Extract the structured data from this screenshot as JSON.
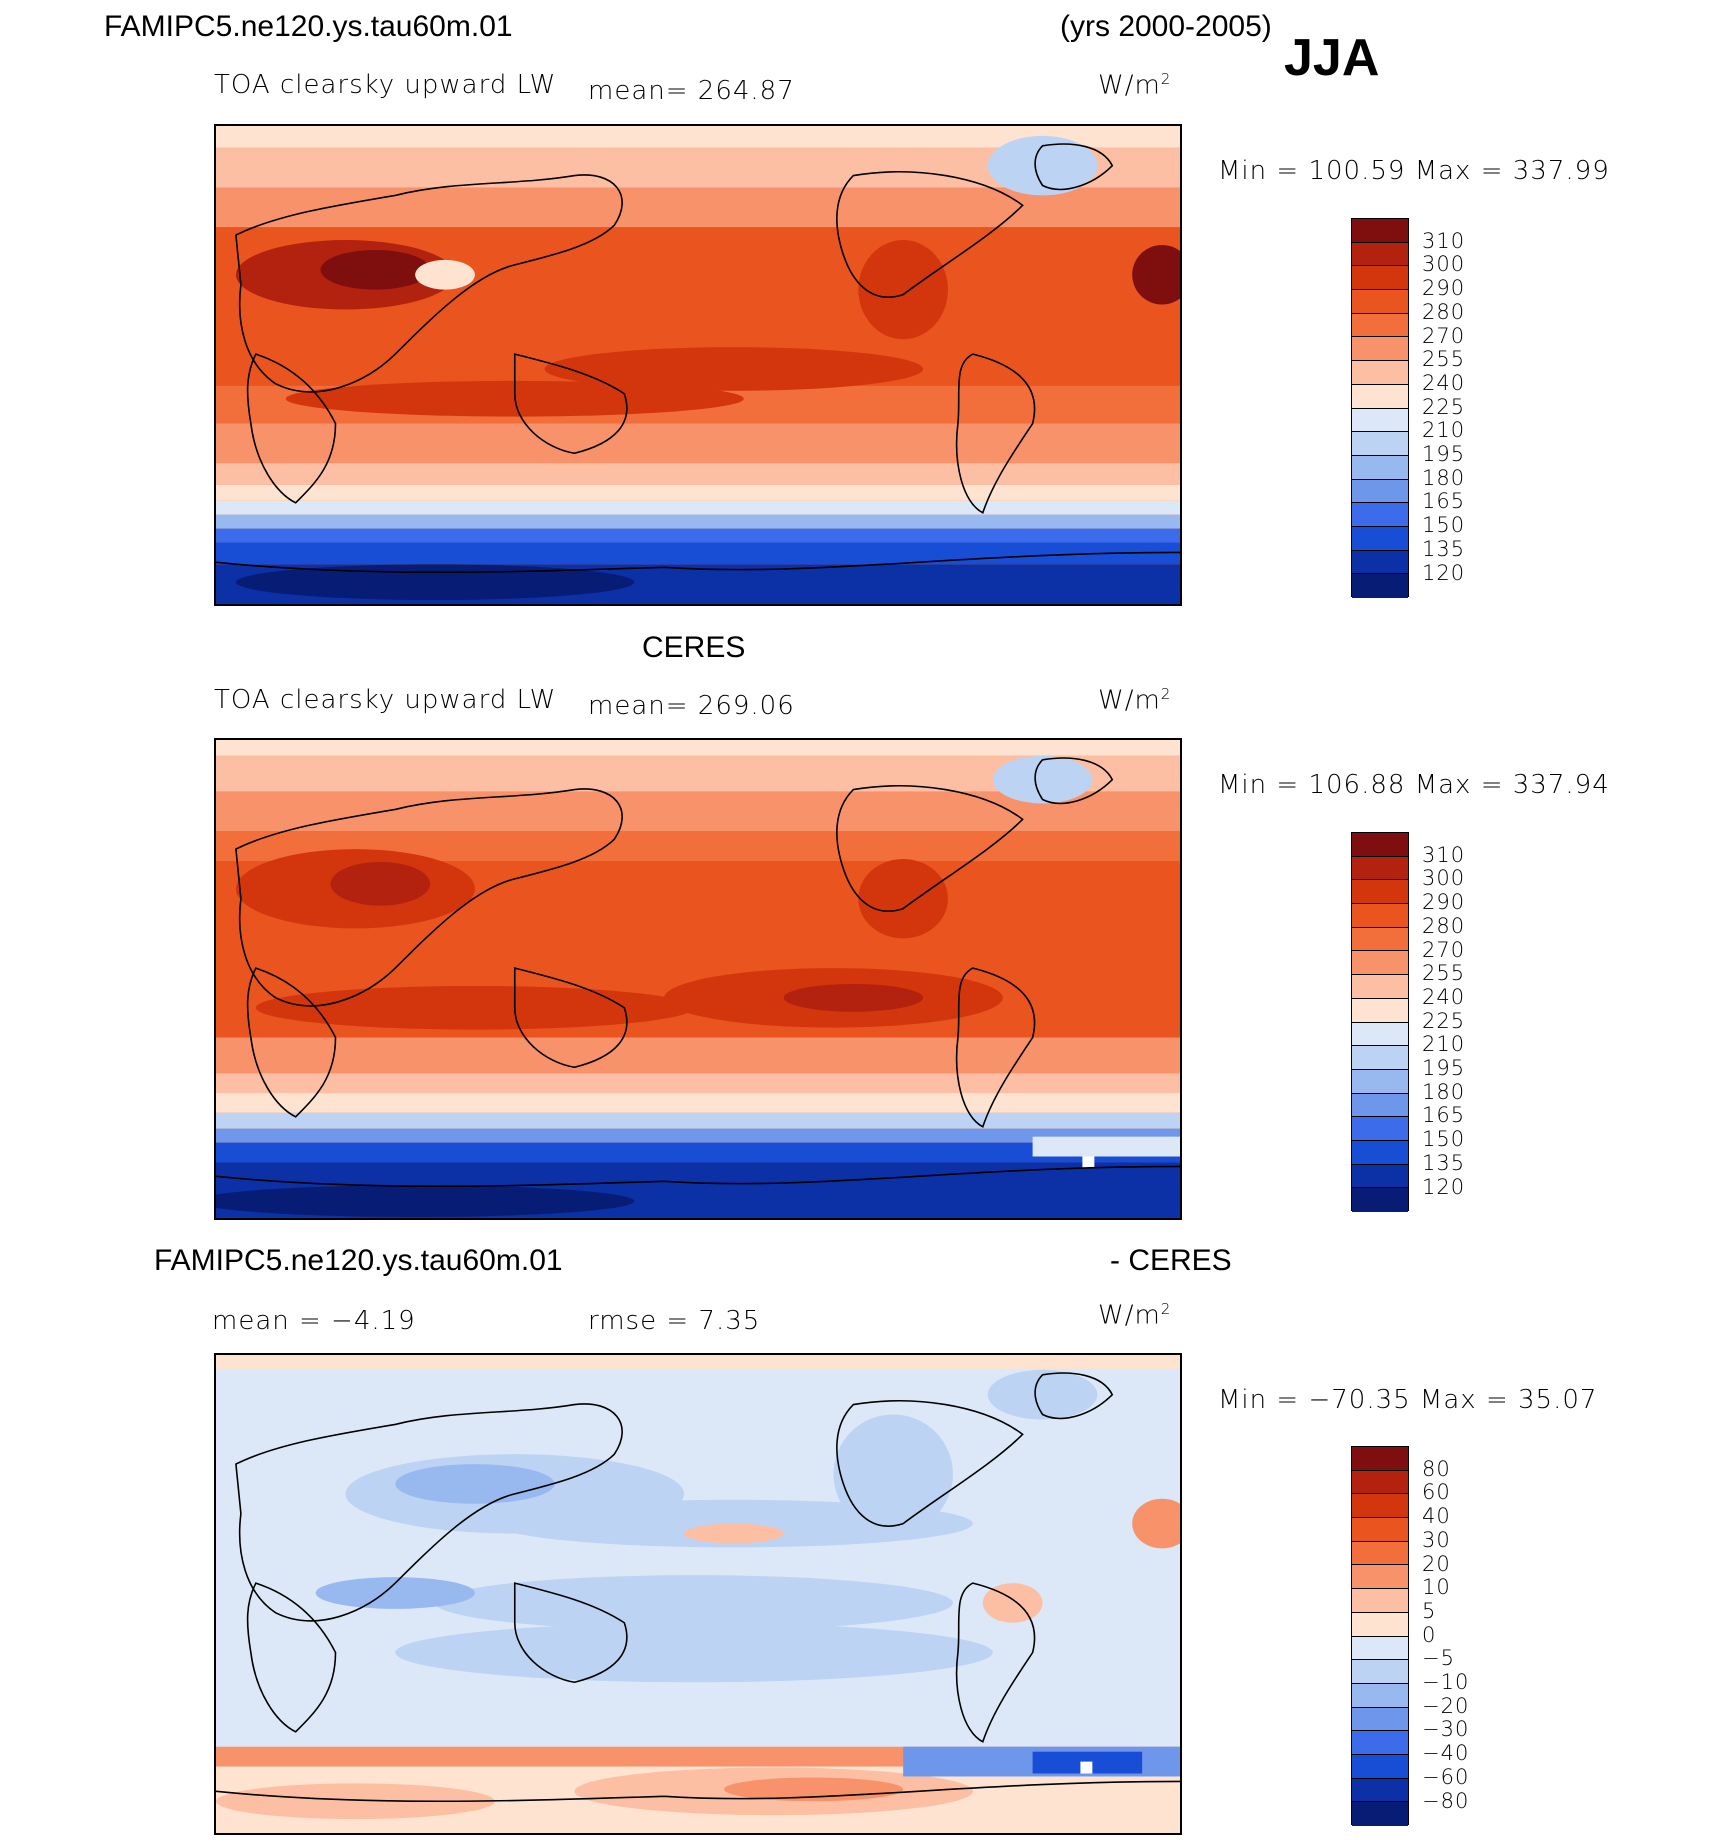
{
  "season": "JJA",
  "top_header": {
    "case": "FAMIPC5.ne120.ys.tau60m.01",
    "years": "(yrs 2000-2005)"
  },
  "panels": [
    {
      "heading": "",
      "var_label": "TOA clearsky upward LW",
      "mean_label": "mean=  264.87",
      "extra_label": "",
      "units": "W/m",
      "units_sup": "2",
      "minmax": "Min  =  100.59  Max  =  337.99"
    },
    {
      "heading": "CERES",
      "var_label": "TOA clearsky upward LW",
      "mean_label": "mean=  269.06",
      "extra_label": "",
      "units": "W/m",
      "units_sup": "2",
      "minmax": "Min  =  106.88  Max  =  337.94"
    },
    {
      "heading": "FAMIPC5.ne120.ys.tau60m.01",
      "heading_right": "- CERES",
      "var_label": "",
      "mean_label": "mean  =    −4.19",
      "extra_label": "rmse  =     7.35",
      "units": "W/m",
      "units_sup": "2",
      "minmax": "Min  =  −70.35  Max  =    35.07"
    }
  ],
  "colorbars": {
    "field": {
      "labels": [
        "310",
        "300",
        "290",
        "280",
        "270",
        "255",
        "240",
        "225",
        "210",
        "195",
        "180",
        "165",
        "150",
        "135",
        "120"
      ],
      "colors": [
        "#7f0f0f",
        "#b2220e",
        "#d3360d",
        "#e9541f",
        "#f26f3b",
        "#f7926a",
        "#fcbfa3",
        "#fde3d0",
        "#dce8f7",
        "#bcd3f3",
        "#98b8f0",
        "#6e97ec",
        "#3c6cea",
        "#184ed5",
        "#0c30a6",
        "#071c75"
      ]
    },
    "diff": {
      "labels": [
        "80",
        "60",
        "40",
        "30",
        "20",
        "10",
        "5",
        "0",
        "−5",
        "−10",
        "−20",
        "−30",
        "−40",
        "−60",
        "−80"
      ],
      "colors": [
        "#7f0f0f",
        "#b2220e",
        "#d3360d",
        "#e9541f",
        "#f26f3b",
        "#f7926a",
        "#fcbfa3",
        "#fde3d0",
        "#dce8f7",
        "#bcd3f3",
        "#98b8f0",
        "#6e97ec",
        "#3c6cea",
        "#184ed5",
        "#0c30a6",
        "#071c75"
      ]
    }
  },
  "chart_data": [
    {
      "type": "heatmap",
      "title": "TOA clearsky upward LW",
      "mean": 264.87,
      "min": 100.59,
      "max": 337.99,
      "units": "W/m2",
      "levels": [
        120,
        135,
        150,
        165,
        180,
        195,
        210,
        225,
        240,
        255,
        270,
        280,
        290,
        300,
        310
      ]
    },
    {
      "type": "heatmap",
      "title": "CERES TOA clearsky upward LW",
      "mean": 269.06,
      "min": 106.88,
      "max": 337.94,
      "units": "W/m2",
      "levels": [
        120,
        135,
        150,
        165,
        180,
        195,
        210,
        225,
        240,
        255,
        270,
        280,
        290,
        300,
        310
      ]
    },
    {
      "type": "heatmap",
      "title": "FAMIPC5.ne120.ys.tau60m.01 - CERES",
      "mean": -4.19,
      "rmse": 7.35,
      "min": -70.35,
      "max": 35.07,
      "units": "W/m2",
      "levels": [
        -80,
        -60,
        -40,
        -30,
        -20,
        -10,
        -5,
        0,
        5,
        10,
        20,
        30,
        40,
        60,
        80
      ]
    }
  ]
}
